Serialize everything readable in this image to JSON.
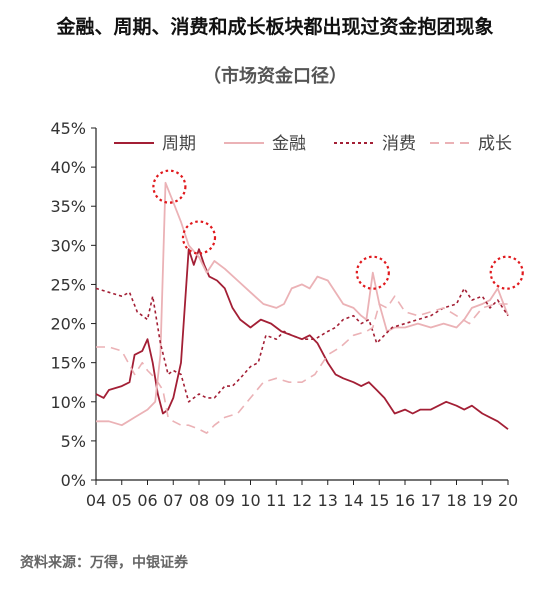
{
  "title": "金融、周期、消费和成长板块都出现过资金抱团现象",
  "subtitle": "（市场资金口径）",
  "source": "资料来源：万得，中银证券",
  "chart_data": {
    "type": "line",
    "title": "金融、周期、消费和成长板块都出现过资金抱团现象",
    "subtitle": "（市场资金口径）",
    "xlabel": "",
    "ylabel": "",
    "x_tick_labels": [
      "04",
      "05",
      "06",
      "07",
      "08",
      "09",
      "10",
      "11",
      "12",
      "13",
      "14",
      "15",
      "16",
      "17",
      "18",
      "19",
      "20"
    ],
    "x_range": [
      2004,
      2020
    ],
    "y_tick_labels": [
      "0%",
      "5%",
      "10%",
      "15%",
      "20%",
      "25%",
      "30%",
      "35%",
      "40%",
      "45%"
    ],
    "ylim": [
      0,
      45
    ],
    "grid": false,
    "legend": "top",
    "series": [
      {
        "name": "周期",
        "color": "#a31f35",
        "dash": "solid",
        "x": [
          2004.0,
          2004.3,
          2004.5,
          2005.0,
          2005.3,
          2005.5,
          2005.8,
          2006.0,
          2006.2,
          2006.4,
          2006.6,
          2006.8,
          2007.0,
          2007.3,
          2007.6,
          2007.8,
          2008.0,
          2008.2,
          2008.4,
          2008.7,
          2009.0,
          2009.3,
          2009.6,
          2010.0,
          2010.4,
          2010.8,
          2011.2,
          2011.6,
          2012.0,
          2012.3,
          2012.6,
          2013.0,
          2013.3,
          2013.6,
          2014.0,
          2014.3,
          2014.6,
          2014.9,
          2015.2,
          2015.6,
          2016.0,
          2016.3,
          2016.6,
          2017.0,
          2017.3,
          2017.6,
          2018.0,
          2018.3,
          2018.6,
          2019.0,
          2019.3,
          2019.6,
          2020.0
        ],
        "values": [
          11.0,
          10.5,
          11.5,
          12.0,
          12.5,
          16.0,
          16.5,
          18.0,
          15.0,
          11.0,
          8.5,
          9.0,
          10.5,
          15.0,
          29.5,
          27.5,
          29.5,
          27.5,
          26.0,
          25.5,
          24.5,
          22.0,
          20.5,
          19.5,
          20.5,
          20.0,
          19.0,
          18.5,
          18.0,
          18.5,
          17.5,
          15.0,
          13.5,
          13.0,
          12.5,
          12.0,
          12.5,
          11.5,
          10.5,
          8.5,
          9.0,
          8.5,
          9.0,
          9.0,
          9.5,
          10.0,
          9.5,
          9.0,
          9.5,
          8.5,
          8.0,
          7.5,
          6.5
        ]
      },
      {
        "name": "金融",
        "color": "#ebb2b6",
        "dash": "solid",
        "x": [
          2004.0,
          2004.5,
          2005.0,
          2005.5,
          2006.0,
          2006.3,
          2006.5,
          2006.7,
          2007.0,
          2007.3,
          2007.6,
          2008.0,
          2008.3,
          2008.6,
          2009.0,
          2009.5,
          2010.0,
          2010.5,
          2011.0,
          2011.3,
          2011.6,
          2012.0,
          2012.3,
          2012.6,
          2013.0,
          2013.3,
          2013.6,
          2014.0,
          2014.3,
          2014.5,
          2014.75,
          2015.0,
          2015.3,
          2015.6,
          2016.0,
          2016.5,
          2017.0,
          2017.5,
          2018.0,
          2018.3,
          2018.6,
          2019.0,
          2019.3,
          2019.6,
          2020.0
        ],
        "values": [
          7.5,
          7.5,
          7.0,
          8.0,
          9.0,
          10.0,
          16.0,
          38.0,
          35.5,
          33.0,
          30.0,
          28.5,
          26.5,
          28.0,
          27.0,
          25.5,
          24.0,
          22.5,
          22.0,
          22.5,
          24.5,
          25.0,
          24.5,
          26.0,
          25.5,
          24.0,
          22.5,
          22.0,
          21.0,
          20.5,
          26.5,
          22.5,
          19.0,
          19.5,
          19.5,
          20.0,
          19.5,
          20.0,
          19.5,
          20.5,
          22.0,
          22.5,
          23.0,
          24.5,
          21.0
        ]
      },
      {
        "name": "消费",
        "color": "#a31f35",
        "dash": "dotted",
        "x": [
          2004.0,
          2004.5,
          2005.0,
          2005.3,
          2005.6,
          2006.0,
          2006.2,
          2006.5,
          2006.8,
          2007.0,
          2007.3,
          2007.6,
          2008.0,
          2008.3,
          2008.6,
          2009.0,
          2009.3,
          2009.6,
          2010.0,
          2010.3,
          2010.6,
          2011.0,
          2011.3,
          2011.6,
          2012.0,
          2012.5,
          2013.0,
          2013.3,
          2013.6,
          2014.0,
          2014.3,
          2014.6,
          2014.9,
          2015.2,
          2015.5,
          2016.0,
          2016.5,
          2017.0,
          2017.5,
          2018.0,
          2018.3,
          2018.6,
          2019.0,
          2019.3,
          2019.6,
          2020.0
        ],
        "values": [
          24.5,
          24.0,
          23.5,
          24.0,
          21.5,
          20.5,
          23.5,
          17.5,
          13.5,
          14.0,
          13.5,
          10.0,
          11.0,
          10.5,
          10.5,
          12.0,
          12.0,
          13.0,
          14.5,
          15.0,
          18.5,
          18.0,
          19.0,
          18.5,
          18.0,
          18.0,
          19.0,
          19.5,
          20.5,
          21.0,
          20.0,
          20.5,
          17.5,
          18.5,
          19.5,
          20.0,
          20.5,
          21.0,
          22.0,
          22.5,
          24.5,
          23.0,
          23.5,
          22.0,
          23.0,
          21.0
        ]
      },
      {
        "name": "成长",
        "color": "#ebb2b6",
        "dash": "dashed",
        "x": [
          2004.0,
          2004.5,
          2005.0,
          2005.5,
          2005.8,
          2006.0,
          2006.3,
          2006.6,
          2006.8,
          2007.0,
          2007.3,
          2007.6,
          2008.0,
          2008.3,
          2008.6,
          2009.0,
          2009.5,
          2010.0,
          2010.5,
          2011.0,
          2011.5,
          2012.0,
          2012.5,
          2013.0,
          2013.5,
          2014.0,
          2014.5,
          2014.75,
          2015.0,
          2015.3,
          2015.6,
          2016.0,
          2016.5,
          2017.0,
          2017.5,
          2018.0,
          2018.5,
          2019.0,
          2019.5,
          2020.0
        ],
        "values": [
          17.0,
          17.0,
          16.5,
          13.5,
          15.0,
          14.0,
          13.0,
          11.5,
          8.0,
          7.5,
          7.0,
          7.0,
          6.5,
          6.0,
          7.0,
          8.0,
          8.5,
          10.5,
          12.5,
          13.0,
          12.5,
          12.5,
          13.5,
          16.0,
          17.0,
          18.5,
          19.0,
          19.5,
          22.5,
          22.0,
          23.5,
          21.5,
          21.0,
          21.5,
          22.0,
          21.0,
          20.0,
          22.0,
          22.5,
          22.5
        ]
      }
    ]
  },
  "highlights": {
    "color": "#e0191d",
    "markers": [
      {
        "x": 2006.85,
        "y": 37.5
      },
      {
        "x": 2008.0,
        "y": 31.0
      },
      {
        "x": 2014.75,
        "y": 26.5
      },
      {
        "x": 2019.95,
        "y": 26.5
      }
    ]
  }
}
